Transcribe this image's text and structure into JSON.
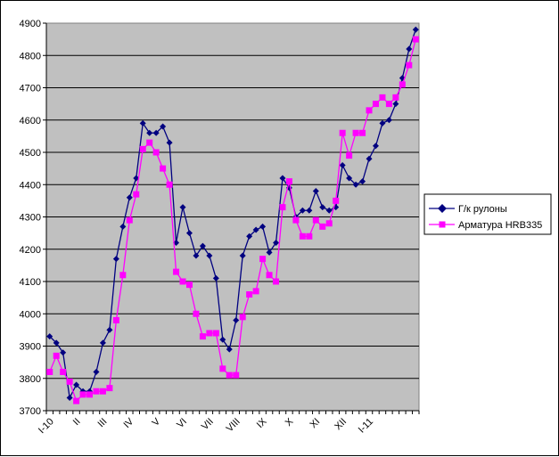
{
  "chart_data": {
    "type": "line",
    "title": "",
    "xlabel": "",
    "ylabel": "",
    "ylim": [
      3700,
      4900
    ],
    "yticks": [
      3700,
      3800,
      3900,
      4000,
      4100,
      4200,
      4300,
      4400,
      4500,
      4600,
      4700,
      4800,
      4900
    ],
    "grid": "horizontal",
    "plot_background": "#c0c0c0",
    "legend_position": "right",
    "x_tick_labels": [
      {
        "label": "I-10",
        "index": 0
      },
      {
        "label": "II",
        "index": 4
      },
      {
        "label": "III",
        "index": 8
      },
      {
        "label": "IV",
        "index": 12
      },
      {
        "label": "V",
        "index": 16
      },
      {
        "label": "VI",
        "index": 20
      },
      {
        "label": "VII",
        "index": 24
      },
      {
        "label": "VIII",
        "index": 28
      },
      {
        "label": "IX",
        "index": 32
      },
      {
        "label": "X",
        "index": 36
      },
      {
        "label": "XI",
        "index": 40
      },
      {
        "label": "XII",
        "index": 44
      },
      {
        "label": "I-11",
        "index": 48
      }
    ],
    "series": [
      {
        "name": "Г/к рулоны",
        "color": "#000080",
        "marker": "diamond",
        "values": [
          3930,
          3910,
          3880,
          3740,
          3780,
          3760,
          3760,
          3820,
          3910,
          3950,
          4170,
          4270,
          4360,
          4420,
          4590,
          4560,
          4560,
          4580,
          4530,
          4220,
          4330,
          4250,
          4180,
          4210,
          4180,
          4110,
          3920,
          3890,
          3980,
          4180,
          4240,
          4260,
          4270,
          4190,
          4220,
          4420,
          4390,
          4300,
          4320,
          4320,
          4380,
          4330,
          4320,
          4330,
          4460,
          4420,
          4400,
          4410,
          4480,
          4520,
          4590,
          4600,
          4650,
          4730,
          4820,
          4880
        ]
      },
      {
        "name": "Арматура HRB335",
        "color": "#ff00ff",
        "marker": "square",
        "values": [
          3820,
          3870,
          3820,
          3790,
          3730,
          3750,
          3750,
          3760,
          3760,
          3770,
          3980,
          4120,
          4290,
          4370,
          4510,
          4530,
          4500,
          4450,
          4400,
          4130,
          4100,
          4090,
          4000,
          3930,
          3940,
          3940,
          3830,
          3810,
          3810,
          3990,
          4060,
          4070,
          4170,
          4120,
          4100,
          4330,
          4410,
          4290,
          4240,
          4240,
          4290,
          4270,
          4280,
          4350,
          4560,
          4490,
          4560,
          4560,
          4630,
          4650,
          4670,
          4650,
          4670,
          4710,
          4770,
          4850
        ]
      }
    ]
  }
}
